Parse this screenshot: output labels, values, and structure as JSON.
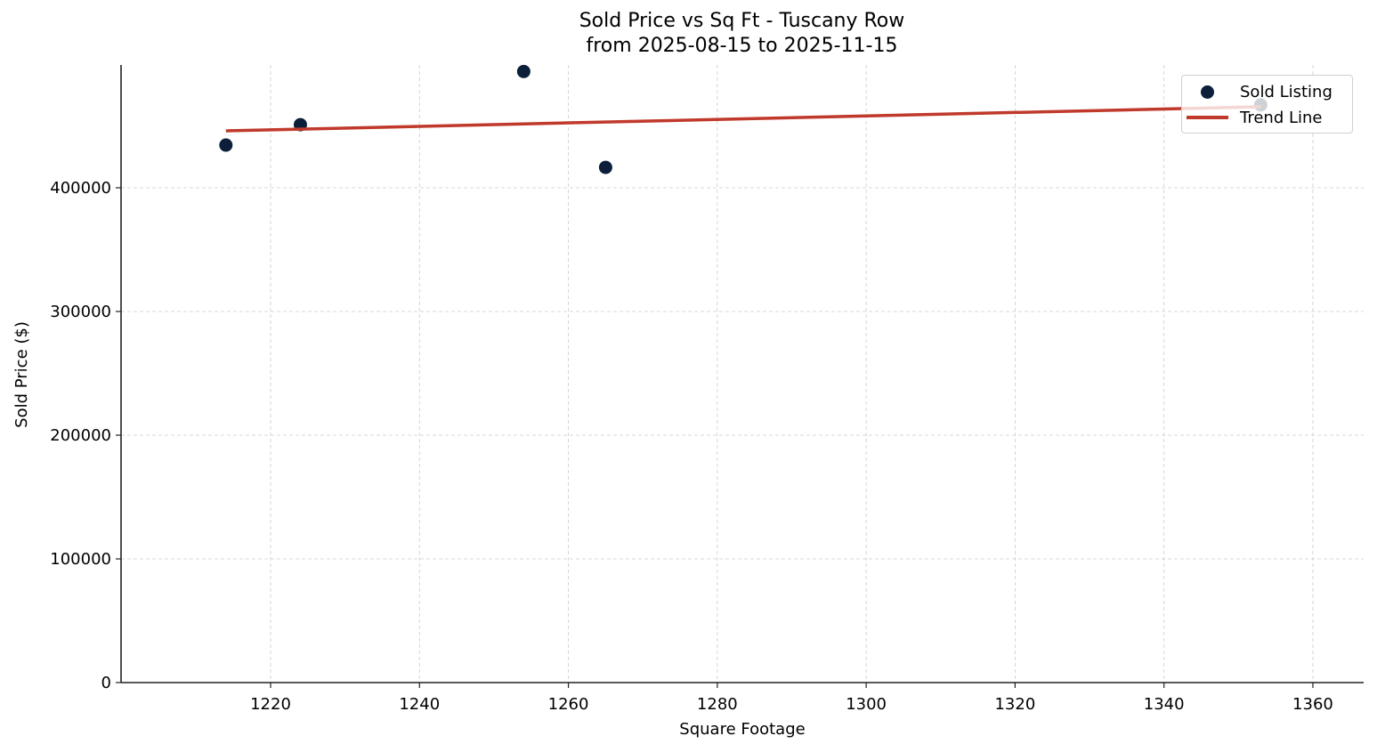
{
  "chart_data": {
    "type": "scatter",
    "title": "Sold Price vs Sq Ft - Tuscany Row",
    "subtitle": "from 2025-08-15 to 2025-11-15",
    "xlabel": "Square Footage",
    "ylabel": "Sold Price ($)",
    "xlim": [
      1200,
      1367
    ],
    "ylim": [
      0,
      498000
    ],
    "x_ticks": [
      1220,
      1240,
      1260,
      1280,
      1300,
      1320,
      1340,
      1360
    ],
    "y_ticks": [
      0,
      100000,
      200000,
      300000,
      400000
    ],
    "grid": true,
    "legend_position": "upper right",
    "series": [
      {
        "name": "Sold Listing",
        "kind": "scatter",
        "color": "#0b1f3a",
        "points": [
          {
            "x": 1214,
            "y": 434500
          },
          {
            "x": 1224,
            "y": 451000
          },
          {
            "x": 1254,
            "y": 494000
          },
          {
            "x": 1265,
            "y": 416500
          },
          {
            "x": 1353,
            "y": 467000
          }
        ]
      },
      {
        "name": "Trend Line",
        "kind": "line",
        "color": "#c0392b",
        "points": [
          {
            "x": 1214,
            "y": 446000
          },
          {
            "x": 1353,
            "y": 465500
          }
        ]
      }
    ]
  },
  "legend": {
    "items": [
      {
        "label": "Sold Listing",
        "color": "#0b1f3a"
      },
      {
        "label": "Trend Line",
        "color": "#c0392b"
      }
    ]
  }
}
